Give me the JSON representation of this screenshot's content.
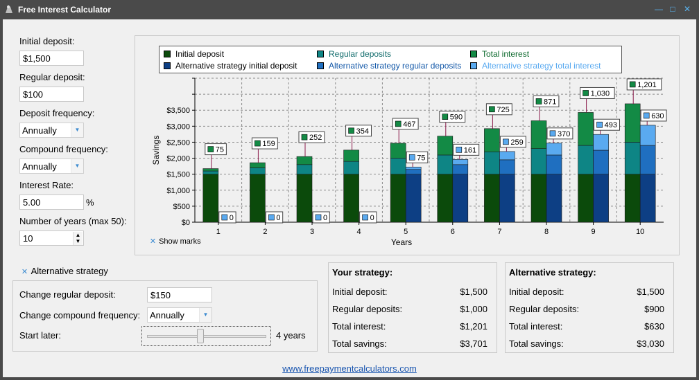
{
  "window": {
    "title": "Free Interest Calculator"
  },
  "inputs": {
    "initial_deposit_label": "Initial deposit:",
    "initial_deposit_value": "$1,500",
    "regular_deposit_label": "Regular deposit:",
    "regular_deposit_value": "$100",
    "deposit_frequency_label": "Deposit frequency:",
    "deposit_frequency_value": "Annually",
    "compound_frequency_label": "Compound frequency:",
    "compound_frequency_value": "Annually",
    "interest_rate_label": "Interest Rate:",
    "interest_rate_value": "5.00",
    "interest_rate_unit": "%",
    "years_label": "Number of years (max 50):",
    "years_value": "10"
  },
  "legend": [
    {
      "label": "Initial deposit",
      "color": "#0b4a0b",
      "text_color": "#000000"
    },
    {
      "label": "Regular deposits",
      "color": "#0e8585",
      "text_color": "#0e6a6a"
    },
    {
      "label": "Total interest",
      "color": "#138a45",
      "text_color": "#0e6a2e"
    },
    {
      "label": "Alternative strategy initial deposit",
      "color": "#0d3f84",
      "text_color": "#000000"
    },
    {
      "label": "Alternative strategy regular deposits",
      "color": "#1f6fc0",
      "text_color": "#1358a8"
    },
    {
      "label": "Alternative strategy total interest",
      "color": "#5aaaf0",
      "text_color": "#5aaaf0"
    }
  ],
  "chart_data": {
    "type": "bar",
    "xlabel": "Years",
    "ylabel": "Savings",
    "ylim": [
      0,
      4500
    ],
    "yticks": [
      "$0",
      "$500",
      "$1,000",
      "$1,500",
      "$2,000",
      "$2,500",
      "$3,000",
      "$3,500"
    ],
    "categories": [
      "1",
      "2",
      "3",
      "4",
      "5",
      "6",
      "7",
      "8",
      "9",
      "10"
    ],
    "grid": true,
    "series": [
      {
        "name": "Initial deposit",
        "values": [
          1500,
          1500,
          1500,
          1500,
          1500,
          1500,
          1500,
          1500,
          1500,
          1500
        ]
      },
      {
        "name": "Regular deposits",
        "values": [
          100,
          200,
          300,
          400,
          500,
          600,
          700,
          800,
          900,
          1000
        ]
      },
      {
        "name": "Total interest",
        "values": [
          75,
          159,
          252,
          354,
          467,
          590,
          725,
          871,
          1030,
          1201
        ]
      },
      {
        "name": "Alternative strategy initial deposit",
        "values": [
          0,
          0,
          0,
          0,
          1500,
          1500,
          1500,
          1500,
          1500,
          1500
        ]
      },
      {
        "name": "Alternative strategy regular deposits",
        "values": [
          0,
          0,
          0,
          0,
          150,
          300,
          450,
          600,
          750,
          900
        ]
      },
      {
        "name": "Alternative strategy total interest",
        "values": [
          0,
          0,
          0,
          0,
          75,
          161,
          259,
          370,
          493,
          630
        ]
      }
    ],
    "marks": {
      "interest": [
        "75",
        "159",
        "252",
        "354",
        "467",
        "590",
        "725",
        "871",
        "1,030",
        "1,201"
      ],
      "alt_interest": [
        "0",
        "0",
        "0",
        "0",
        "75",
        "161",
        "259",
        "370",
        "493",
        "630"
      ]
    }
  },
  "show_marks_label": "Show marks",
  "alt": {
    "toggle_label": "Alternative strategy",
    "change_regular_label": "Change regular deposit:",
    "change_regular_value": "$150",
    "change_compound_label": "Change compound frequency:",
    "change_compound_value": "Annually",
    "start_later_label": "Start later:",
    "start_later_value": "4 years",
    "start_later_years": 4,
    "start_later_max": 9
  },
  "your_strategy": {
    "title": "Your strategy:",
    "rows": [
      {
        "label": "Initial deposit:",
        "value": "$1,500"
      },
      {
        "label": "Regular deposits:",
        "value": "$1,000"
      },
      {
        "label": "Total interest:",
        "value": "$1,201"
      },
      {
        "label": "Total savings:",
        "value": "$3,701"
      }
    ]
  },
  "alt_strategy": {
    "title": "Alternative strategy:",
    "rows": [
      {
        "label": "Initial deposit:",
        "value": "$1,500"
      },
      {
        "label": "Regular deposits:",
        "value": "$900"
      },
      {
        "label": "Total interest:",
        "value": "$630"
      },
      {
        "label": "Total savings:",
        "value": "$3,030"
      }
    ]
  },
  "footer": {
    "link": "www.freepaymentcalculators.com"
  }
}
